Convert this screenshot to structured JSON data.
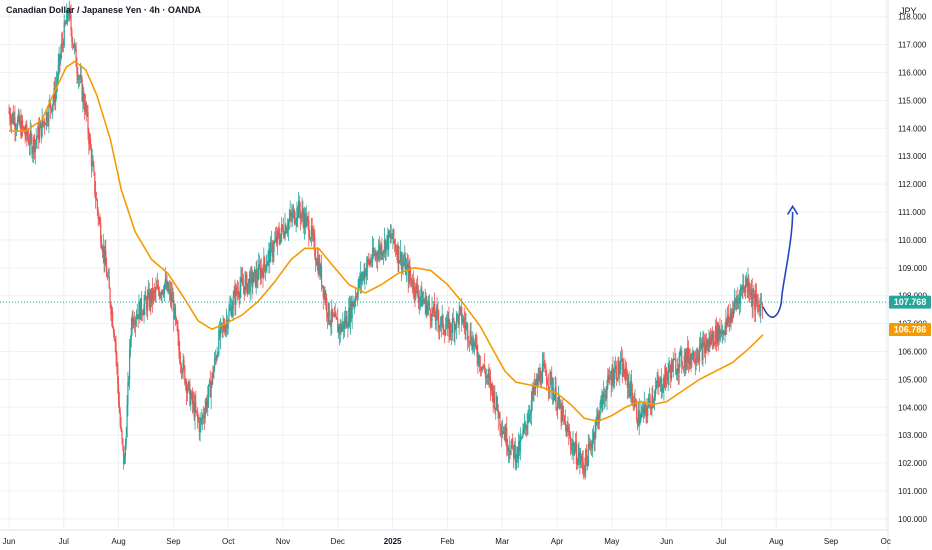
{
  "chart_data": {
    "type": "candlestick",
    "title": "Canadian Dollar / Japanese Yen · 4h · OANDA",
    "currency_unit": "JPY",
    "ylim": [
      99.6,
      118.6
    ],
    "y_ticks": [
      "100.000",
      "101.000",
      "102.000",
      "103.000",
      "104.000",
      "105.000",
      "106.000",
      "107.000",
      "108.000",
      "109.000",
      "110.000",
      "111.000",
      "112.000",
      "113.000",
      "114.000",
      "115.000",
      "116.000",
      "117.000",
      "118.000"
    ],
    "x_ticks": [
      {
        "label": "Jun",
        "month": 0
      },
      {
        "label": "Jul",
        "month": 1
      },
      {
        "label": "Aug",
        "month": 2
      },
      {
        "label": "Sep",
        "month": 3
      },
      {
        "label": "Oct",
        "month": 4
      },
      {
        "label": "Nov",
        "month": 5
      },
      {
        "label": "Dec",
        "month": 6
      },
      {
        "label": "2025",
        "month": 7,
        "bold": true
      },
      {
        "label": "Feb",
        "month": 8
      },
      {
        "label": "Mar",
        "month": 9
      },
      {
        "label": "Apr",
        "month": 10
      },
      {
        "label": "May",
        "month": 11
      },
      {
        "label": "Jun",
        "month": 12
      },
      {
        "label": "Jul",
        "month": 13
      },
      {
        "label": "Aug",
        "month": 14
      },
      {
        "label": "Sep",
        "month": 15
      },
      {
        "label": "Oc",
        "month": 16
      }
    ],
    "price_path": [
      [
        0.0,
        114.6
      ],
      [
        0.25,
        114.0
      ],
      [
        0.45,
        113.4
      ],
      [
        0.6,
        114.0
      ],
      [
        0.85,
        115.2
      ],
      [
        1.0,
        117.2
      ],
      [
        1.1,
        118.2
      ],
      [
        1.25,
        116.3
      ],
      [
        1.42,
        114.6
      ],
      [
        1.62,
        111.2
      ],
      [
        1.8,
        108.8
      ],
      [
        1.95,
        106.5
      ],
      [
        2.05,
        103.2
      ],
      [
        2.12,
        101.9
      ],
      [
        2.25,
        107.2
      ],
      [
        2.45,
        107.6
      ],
      [
        2.65,
        108.0
      ],
      [
        2.85,
        108.4
      ],
      [
        3.0,
        107.8
      ],
      [
        3.12,
        106.0
      ],
      [
        3.3,
        104.5
      ],
      [
        3.5,
        103.3
      ],
      [
        3.7,
        104.8
      ],
      [
        3.85,
        106.5
      ],
      [
        4.0,
        107.2
      ],
      [
        4.2,
        108.3
      ],
      [
        4.45,
        108.5
      ],
      [
        4.65,
        109.0
      ],
      [
        4.85,
        109.8
      ],
      [
        5.05,
        110.5
      ],
      [
        5.3,
        111.1
      ],
      [
        5.5,
        110.4
      ],
      [
        5.7,
        108.8
      ],
      [
        5.85,
        107.3
      ],
      [
        6.05,
        106.8
      ],
      [
        6.2,
        107.2
      ],
      [
        6.4,
        108.4
      ],
      [
        6.55,
        109.1
      ],
      [
        6.75,
        109.6
      ],
      [
        7.0,
        110.1
      ],
      [
        7.15,
        109.4
      ],
      [
        7.3,
        108.8
      ],
      [
        7.5,
        108.0
      ],
      [
        7.7,
        107.5
      ],
      [
        7.9,
        107.0
      ],
      [
        8.05,
        106.8
      ],
      [
        8.25,
        107.3
      ],
      [
        8.45,
        106.5
      ],
      [
        8.65,
        105.5
      ],
      [
        8.85,
        104.5
      ],
      [
        9.0,
        103.4
      ],
      [
        9.15,
        102.6
      ],
      [
        9.3,
        102.3
      ],
      [
        9.45,
        103.4
      ],
      [
        9.6,
        104.6
      ],
      [
        9.75,
        105.3
      ],
      [
        9.9,
        104.9
      ],
      [
        10.05,
        104.0
      ],
      [
        10.2,
        103.1
      ],
      [
        10.35,
        102.4
      ],
      [
        10.5,
        101.9
      ],
      [
        10.6,
        102.4
      ],
      [
        10.75,
        103.6
      ],
      [
        10.9,
        104.6
      ],
      [
        11.05,
        105.3
      ],
      [
        11.2,
        105.4
      ],
      [
        11.35,
        104.7
      ],
      [
        11.5,
        103.6
      ],
      [
        11.65,
        103.9
      ],
      [
        11.8,
        104.6
      ],
      [
        11.95,
        104.9
      ],
      [
        12.1,
        105.4
      ],
      [
        12.3,
        105.7
      ],
      [
        12.5,
        105.9
      ],
      [
        12.7,
        106.1
      ],
      [
        12.9,
        106.6
      ],
      [
        13.1,
        106.9
      ],
      [
        13.25,
        107.6
      ],
      [
        13.4,
        108.3
      ],
      [
        13.5,
        108.5
      ],
      [
        13.6,
        107.8
      ],
      [
        13.7,
        107.6
      ],
      [
        13.76,
        107.7
      ]
    ],
    "ma_path": [
      [
        0.0,
        113.9
      ],
      [
        0.3,
        113.9
      ],
      [
        0.6,
        114.3
      ],
      [
        0.85,
        115.4
      ],
      [
        1.05,
        116.2
      ],
      [
        1.2,
        116.4
      ],
      [
        1.4,
        116.1
      ],
      [
        1.6,
        115.2
      ],
      [
        1.85,
        113.6
      ],
      [
        2.05,
        111.8
      ],
      [
        2.3,
        110.3
      ],
      [
        2.6,
        109.3
      ],
      [
        2.9,
        108.8
      ],
      [
        3.2,
        107.9
      ],
      [
        3.45,
        107.1
      ],
      [
        3.7,
        106.8
      ],
      [
        3.95,
        107.0
      ],
      [
        4.25,
        107.3
      ],
      [
        4.55,
        107.8
      ],
      [
        4.85,
        108.5
      ],
      [
        5.15,
        109.3
      ],
      [
        5.4,
        109.7
      ],
      [
        5.65,
        109.7
      ],
      [
        5.9,
        109.1
      ],
      [
        6.2,
        108.4
      ],
      [
        6.5,
        108.1
      ],
      [
        6.8,
        108.4
      ],
      [
        7.1,
        108.8
      ],
      [
        7.4,
        109.0
      ],
      [
        7.7,
        108.9
      ],
      [
        8.0,
        108.4
      ],
      [
        8.3,
        107.7
      ],
      [
        8.6,
        106.9
      ],
      [
        8.85,
        106.0
      ],
      [
        9.05,
        105.3
      ],
      [
        9.25,
        104.9
      ],
      [
        9.5,
        104.8
      ],
      [
        9.75,
        104.7
      ],
      [
        10.0,
        104.5
      ],
      [
        10.25,
        104.1
      ],
      [
        10.5,
        103.6
      ],
      [
        10.75,
        103.5
      ],
      [
        11.0,
        103.7
      ],
      [
        11.25,
        104.0
      ],
      [
        11.5,
        104.2
      ],
      [
        11.75,
        104.1
      ],
      [
        12.0,
        104.2
      ],
      [
        12.3,
        104.6
      ],
      [
        12.6,
        105.0
      ],
      [
        12.9,
        105.3
      ],
      [
        13.2,
        105.6
      ],
      [
        13.5,
        106.1
      ],
      [
        13.76,
        106.6
      ]
    ],
    "projection_path": [
      [
        13.76,
        107.6
      ],
      [
        13.95,
        107.2
      ],
      [
        14.1,
        107.9
      ],
      [
        14.25,
        109.4
      ],
      [
        14.3,
        111.0
      ]
    ],
    "projection_arrow_tip": [
      14.3,
      111.2
    ],
    "current_price": 107.768,
    "current_price_label": "107.768",
    "ma_value": 106.786,
    "ma_value_label": "106.786",
    "colors": {
      "up": "#26a69a",
      "down": "#ef5350",
      "ma": "#f59b00",
      "projection": "#2448c2",
      "price_line": "#26a69a",
      "grid": "#eef0f3",
      "text": "#131722"
    }
  }
}
